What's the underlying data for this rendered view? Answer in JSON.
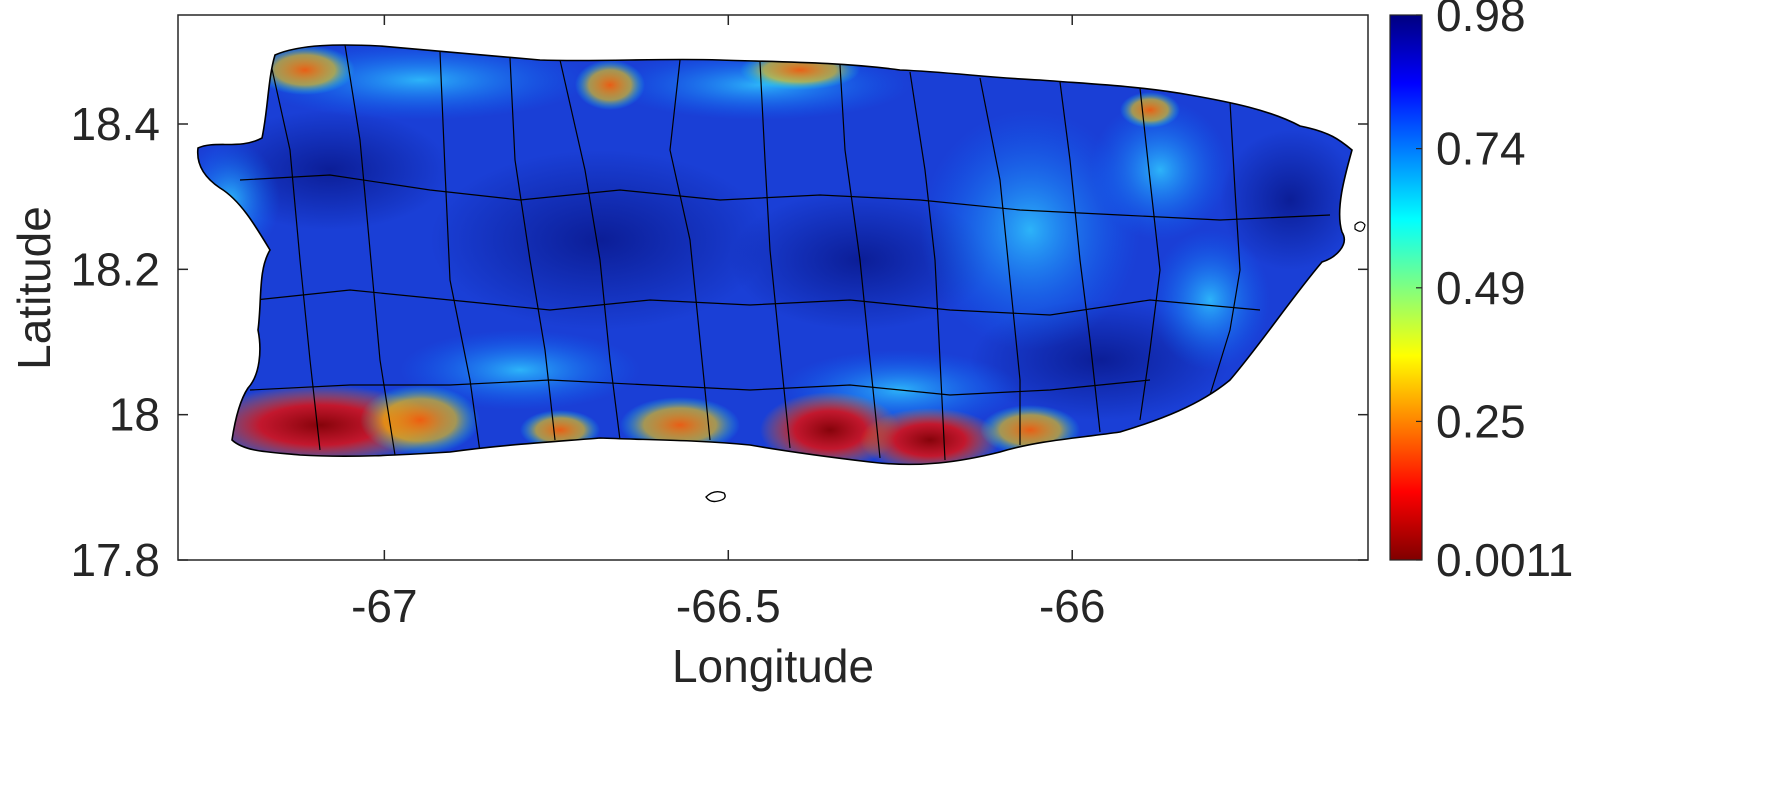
{
  "map": {
    "x_axis": {
      "label": "Longitude",
      "range": [
        -67.3,
        -65.57
      ],
      "ticks": [
        {
          "value": -67,
          "label": "-67"
        },
        {
          "value": -66.5,
          "label": "-66.5"
        },
        {
          "value": -66,
          "label": "-66"
        }
      ]
    },
    "y_axis": {
      "label": "Latitude",
      "range": [
        17.8,
        18.55
      ],
      "ticks": [
        {
          "value": 18.4,
          "label": "18.4"
        },
        {
          "value": 18.2,
          "label": "18.2"
        },
        {
          "value": 18,
          "label": "18"
        },
        {
          "value": 17.8,
          "label": "17.8"
        }
      ]
    },
    "colorbar": {
      "colormap": "jet",
      "range": [
        0.0011,
        0.98
      ],
      "ticks": [
        {
          "value": 0.98,
          "label": "0.98"
        },
        {
          "value": 0.74,
          "label": "0.74"
        },
        {
          "value": 0.49,
          "label": "0.49"
        },
        {
          "value": 0.25,
          "label": "0.25"
        },
        {
          "value": 0.0011,
          "label": "0.0011"
        }
      ],
      "colors": [
        "#800000",
        "#ff0000",
        "#ff8000",
        "#ffff00",
        "#80ff80",
        "#00ffff",
        "#0080ff",
        "#0000ff",
        "#000080"
      ]
    },
    "land_color": "#1a3fd6",
    "boundary_color": "#000000",
    "background_color": "#ffffff"
  }
}
